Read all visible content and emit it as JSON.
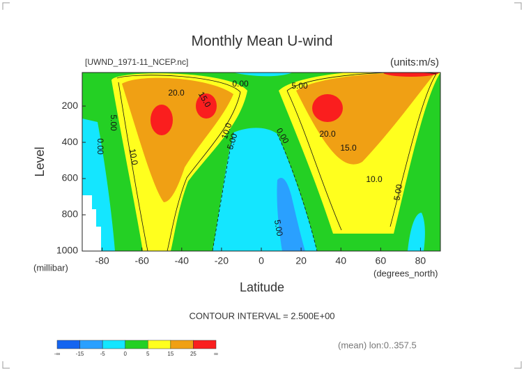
{
  "chart_data": {
    "type": "contour",
    "title": "Monthly Mean U-wind",
    "source_label": "[UWND_1971-11_NCEP.nc]",
    "units_label": "(units:m/s)",
    "x_label": "Latitude",
    "x_unit_label": "(degrees_north)",
    "y_label": "Level",
    "y_unit_label": "(millibar)",
    "xlim": [
      -90,
      90
    ],
    "xticks": [
      -80,
      -60,
      -40,
      -20,
      0,
      20,
      40,
      60,
      80
    ],
    "ylim": [
      1000,
      15
    ],
    "yticks": [
      200,
      400,
      600,
      800,
      1000
    ],
    "contour_labels": [
      "0.00",
      "20.0",
      "15.0",
      "5.00",
      "0.00",
      "10.0",
      "10.0",
      "5.00",
      "5.00",
      "0.00",
      "20.0",
      "15.0",
      "10.0",
      "5.00",
      "5.00"
    ],
    "contour_interval_label": "CONTOUR INTERVAL = 2.500E+00",
    "footer_label": "(mean) lon:0..357.5",
    "colorbar": {
      "labels": [
        "-∞",
        -15,
        -5,
        0,
        5,
        15,
        25,
        "∞"
      ],
      "colors": [
        "#1464f0",
        "#2aa0ff",
        "#14e6ff",
        "#24d024",
        "#ffff1e",
        "#f0a014",
        "#fa1e1e"
      ]
    }
  }
}
